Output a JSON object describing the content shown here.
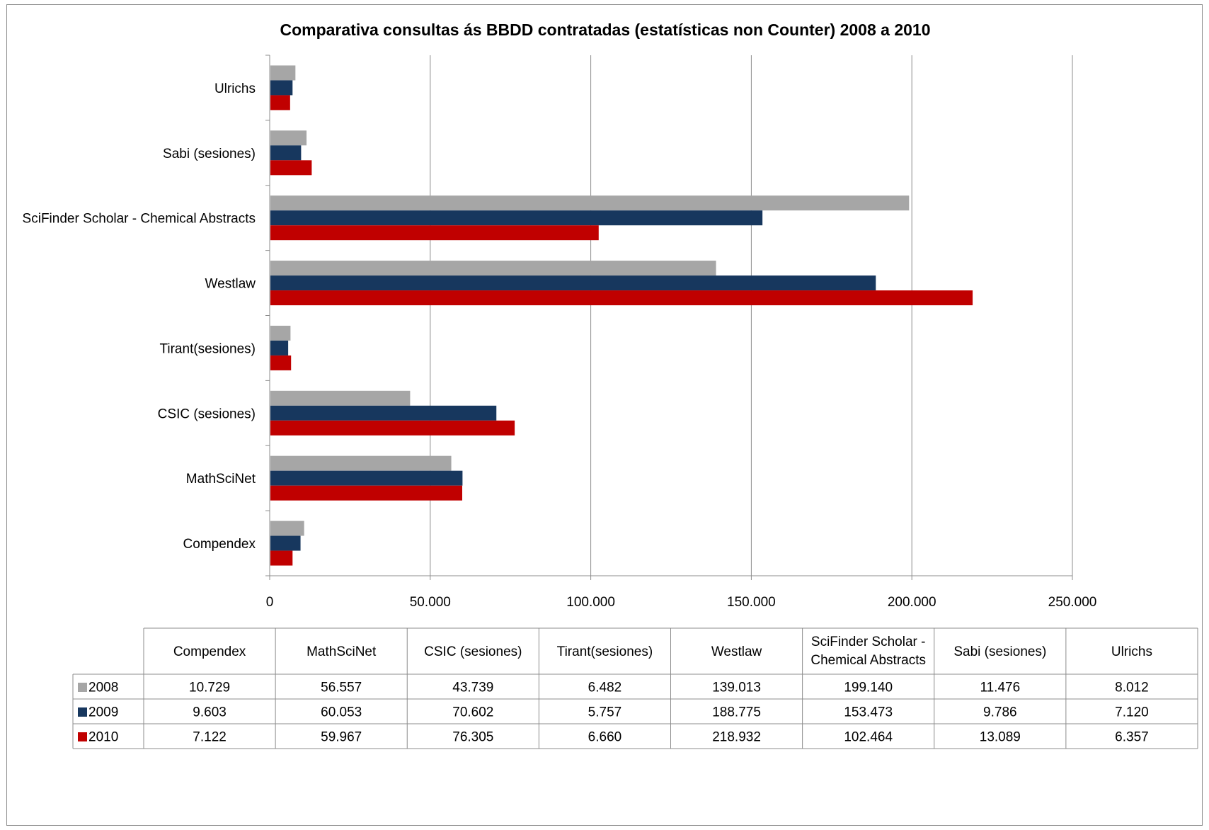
{
  "chart_data": {
    "type": "bar",
    "orientation": "horizontal",
    "title": "Comparativa consultas ás BBDD contratadas (estatísticas non Counter) 2008 a 2010",
    "categories": [
      "Compendex",
      "MathSciNet",
      "CSIC (sesiones)",
      "Tirant(sesiones)",
      "Westlaw",
      "SciFinder Scholar - Chemical Abstracts",
      "Sabi (sesiones)",
      "Ulrichs"
    ],
    "table_headers": [
      "Compendex",
      "MathSciNet",
      "CSIC (sesiones)",
      "Tirant(sesiones)",
      "Westlaw",
      "SciFinder Scholar - Chemical Abstracts",
      "Sabi (sesiones)",
      "Ulrichs"
    ],
    "series": [
      {
        "name": "2008",
        "color": "#a6a6a6",
        "values": [
          10729,
          56557,
          43739,
          6482,
          139013,
          199140,
          11476,
          8012
        ],
        "labels": [
          "10.729",
          "56.557",
          "43.739",
          "6.482",
          "139.013",
          "199.140",
          "11.476",
          "8.012"
        ]
      },
      {
        "name": "2009",
        "color": "#17375e",
        "values": [
          9603,
          60053,
          70602,
          5757,
          188775,
          153473,
          9786,
          7120
        ],
        "labels": [
          "9.603",
          "60.053",
          "70.602",
          "5.757",
          "188.775",
          "153.473",
          "9.786",
          "7.120"
        ]
      },
      {
        "name": "2010",
        "color": "#c00000",
        "values": [
          7122,
          59967,
          76305,
          6660,
          218932,
          102464,
          13089,
          6357
        ],
        "labels": [
          "7.122",
          "59.967",
          "76.305",
          "6.660",
          "218.932",
          "102.464",
          "13.089",
          "6.357"
        ]
      }
    ],
    "xlim": [
      0,
      250000
    ],
    "x_ticks": [
      0,
      50000,
      100000,
      150000,
      200000,
      250000
    ],
    "x_tick_labels": [
      "0",
      "50.000",
      "100.000",
      "150.000",
      "200.000",
      "250.000"
    ],
    "grid": "vertical",
    "legend": "data-table"
  }
}
